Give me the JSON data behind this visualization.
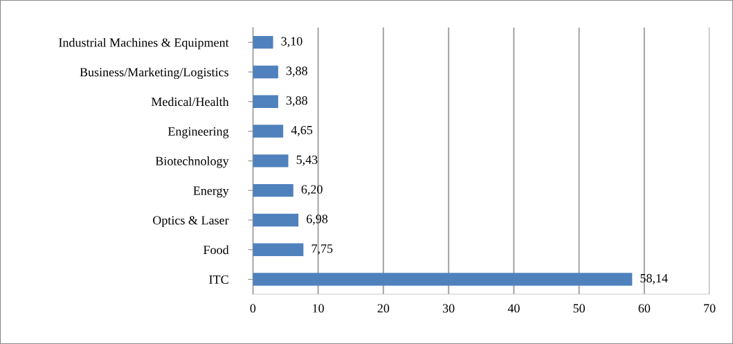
{
  "chart_data": {
    "type": "bar",
    "orientation": "horizontal",
    "categories": [
      "Industrial Machines & Equipment",
      "Business/Marketing/Logistics",
      "Medical/Health",
      "Engineering",
      "Biotechnology",
      "Energy",
      "Optics & Laser",
      "Food",
      "ITC"
    ],
    "values": [
      3.1,
      3.88,
      3.88,
      4.65,
      5.43,
      6.2,
      6.98,
      7.75,
      58.14
    ],
    "value_labels": [
      "3,10",
      "3,88",
      "3,88",
      "4,65",
      "5,43",
      "6,20",
      "6,98",
      "7,75",
      "58,14"
    ],
    "color": "#4f81bd",
    "xlim": [
      0,
      70
    ],
    "xticks": [
      0,
      10,
      20,
      30,
      40,
      50,
      60,
      70
    ],
    "grid": "x",
    "legend": false
  }
}
